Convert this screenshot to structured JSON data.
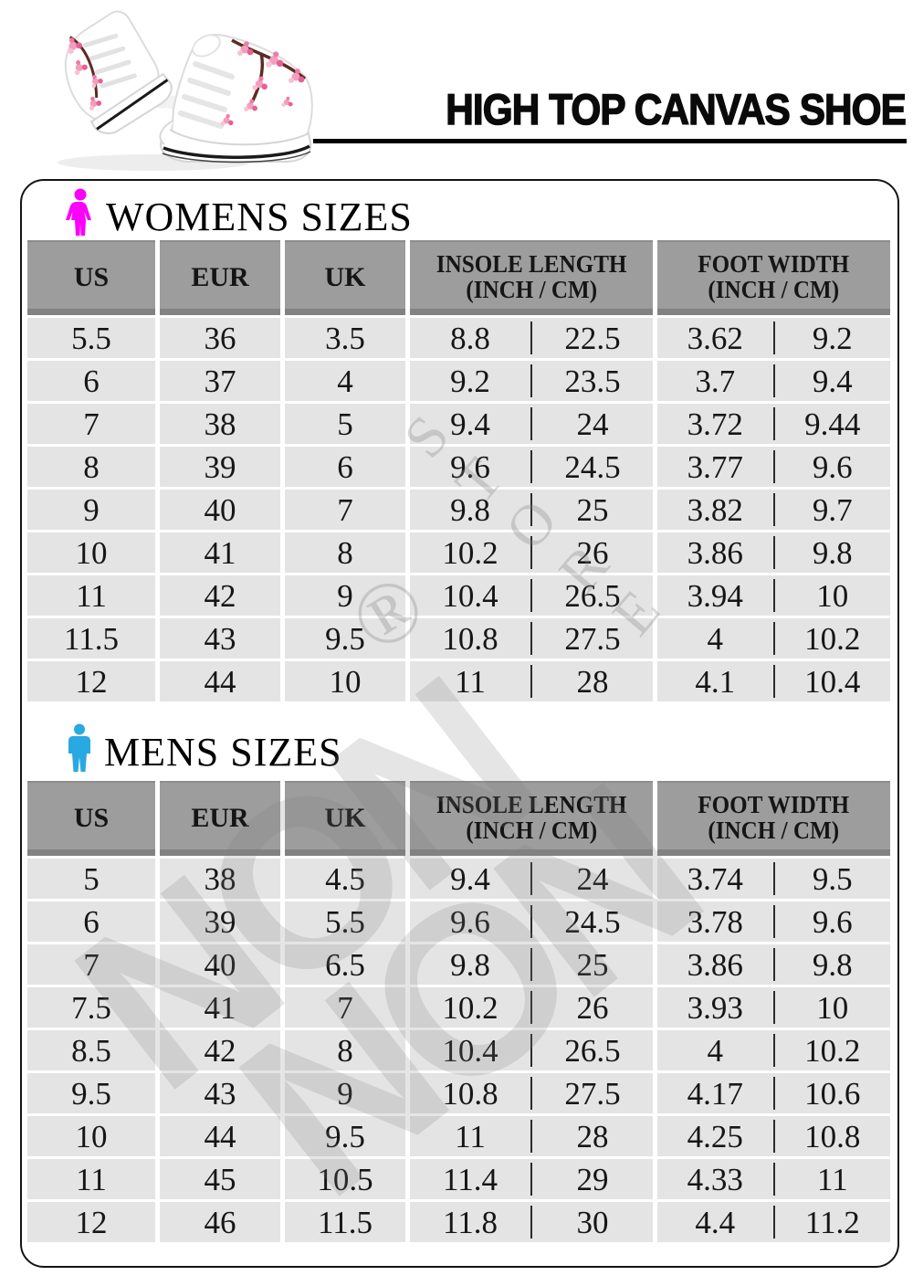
{
  "page": {
    "title": "HIGH TOP CANVAS SHOE"
  },
  "colors": {
    "womens_icon": "#fa02fa",
    "mens_icon": "#29a9e1",
    "header_bg": "#9d9d9d",
    "row_bg": "#e4e4e4",
    "title_color": "#000000"
  },
  "watermark": {
    "logo_text": "NON",
    "logo_text2": "NON",
    "store_text": "STORE",
    "registered_mark": "®"
  },
  "size_tables": [
    {
      "section_title": "WOMENS SIZES",
      "icon": "woman-icon",
      "headers": {
        "us": "US",
        "eur": "EUR",
        "uk": "UK",
        "insole_line1": "INSOLE LENGTH",
        "insole_line2": "(INCH / CM)",
        "foot_line1": "FOOT WIDTH",
        "foot_line2": "(INCH / CM)"
      },
      "rows": [
        {
          "us": "5.5",
          "eur": "36",
          "uk": "3.5",
          "insole_inch": "8.8",
          "insole_cm": "22.5",
          "foot_inch": "3.62",
          "foot_cm": "9.2"
        },
        {
          "us": "6",
          "eur": "37",
          "uk": "4",
          "insole_inch": "9.2",
          "insole_cm": "23.5",
          "foot_inch": "3.7",
          "foot_cm": "9.4"
        },
        {
          "us": "7",
          "eur": "38",
          "uk": "5",
          "insole_inch": "9.4",
          "insole_cm": "24",
          "foot_inch": "3.72",
          "foot_cm": "9.44"
        },
        {
          "us": "8",
          "eur": "39",
          "uk": "6",
          "insole_inch": "9.6",
          "insole_cm": "24.5",
          "foot_inch": "3.77",
          "foot_cm": "9.6"
        },
        {
          "us": "9",
          "eur": "40",
          "uk": "7",
          "insole_inch": "9.8",
          "insole_cm": "25",
          "foot_inch": "3.82",
          "foot_cm": "9.7"
        },
        {
          "us": "10",
          "eur": "41",
          "uk": "8",
          "insole_inch": "10.2",
          "insole_cm": "26",
          "foot_inch": "3.86",
          "foot_cm": "9.8"
        },
        {
          "us": "11",
          "eur": "42",
          "uk": "9",
          "insole_inch": "10.4",
          "insole_cm": "26.5",
          "foot_inch": "3.94",
          "foot_cm": "10"
        },
        {
          "us": "11.5",
          "eur": "43",
          "uk": "9.5",
          "insole_inch": "10.8",
          "insole_cm": "27.5",
          "foot_inch": "4",
          "foot_cm": "10.2"
        },
        {
          "us": "12",
          "eur": "44",
          "uk": "10",
          "insole_inch": "11",
          "insole_cm": "28",
          "foot_inch": "4.1",
          "foot_cm": "10.4"
        }
      ]
    },
    {
      "section_title": "MENS SIZES",
      "icon": "man-icon",
      "headers": {
        "us": "US",
        "eur": "EUR",
        "uk": "UK",
        "insole_line1": "INSOLE LENGTH",
        "insole_line2": "(INCH / CM)",
        "foot_line1": "FOOT WIDTH",
        "foot_line2": "(INCH / CM)"
      },
      "rows": [
        {
          "us": "5",
          "eur": "38",
          "uk": "4.5",
          "insole_inch": "9.4",
          "insole_cm": "24",
          "foot_inch": "3.74",
          "foot_cm": "9.5"
        },
        {
          "us": "6",
          "eur": "39",
          "uk": "5.5",
          "insole_inch": "9.6",
          "insole_cm": "24.5",
          "foot_inch": "3.78",
          "foot_cm": "9.6"
        },
        {
          "us": "7",
          "eur": "40",
          "uk": "6.5",
          "insole_inch": "9.8",
          "insole_cm": "25",
          "foot_inch": "3.86",
          "foot_cm": "9.8"
        },
        {
          "us": "7.5",
          "eur": "41",
          "uk": "7",
          "insole_inch": "10.2",
          "insole_cm": "26",
          "foot_inch": "3.93",
          "foot_cm": "10"
        },
        {
          "us": "8.5",
          "eur": "42",
          "uk": "8",
          "insole_inch": "10.4",
          "insole_cm": "26.5",
          "foot_inch": "4",
          "foot_cm": "10.2"
        },
        {
          "us": "9.5",
          "eur": "43",
          "uk": "9",
          "insole_inch": "10.8",
          "insole_cm": "27.5",
          "foot_inch": "4.17",
          "foot_cm": "10.6"
        },
        {
          "us": "10",
          "eur": "44",
          "uk": "9.5",
          "insole_inch": "11",
          "insole_cm": "28",
          "foot_inch": "4.25",
          "foot_cm": "10.8"
        },
        {
          "us": "11",
          "eur": "45",
          "uk": "10.5",
          "insole_inch": "11.4",
          "insole_cm": "29",
          "foot_inch": "4.33",
          "foot_cm": "11"
        },
        {
          "us": "12",
          "eur": "46",
          "uk": "11.5",
          "insole_inch": "11.8",
          "insole_cm": "30",
          "foot_inch": "4.4",
          "foot_cm": "11.2"
        }
      ]
    }
  ]
}
